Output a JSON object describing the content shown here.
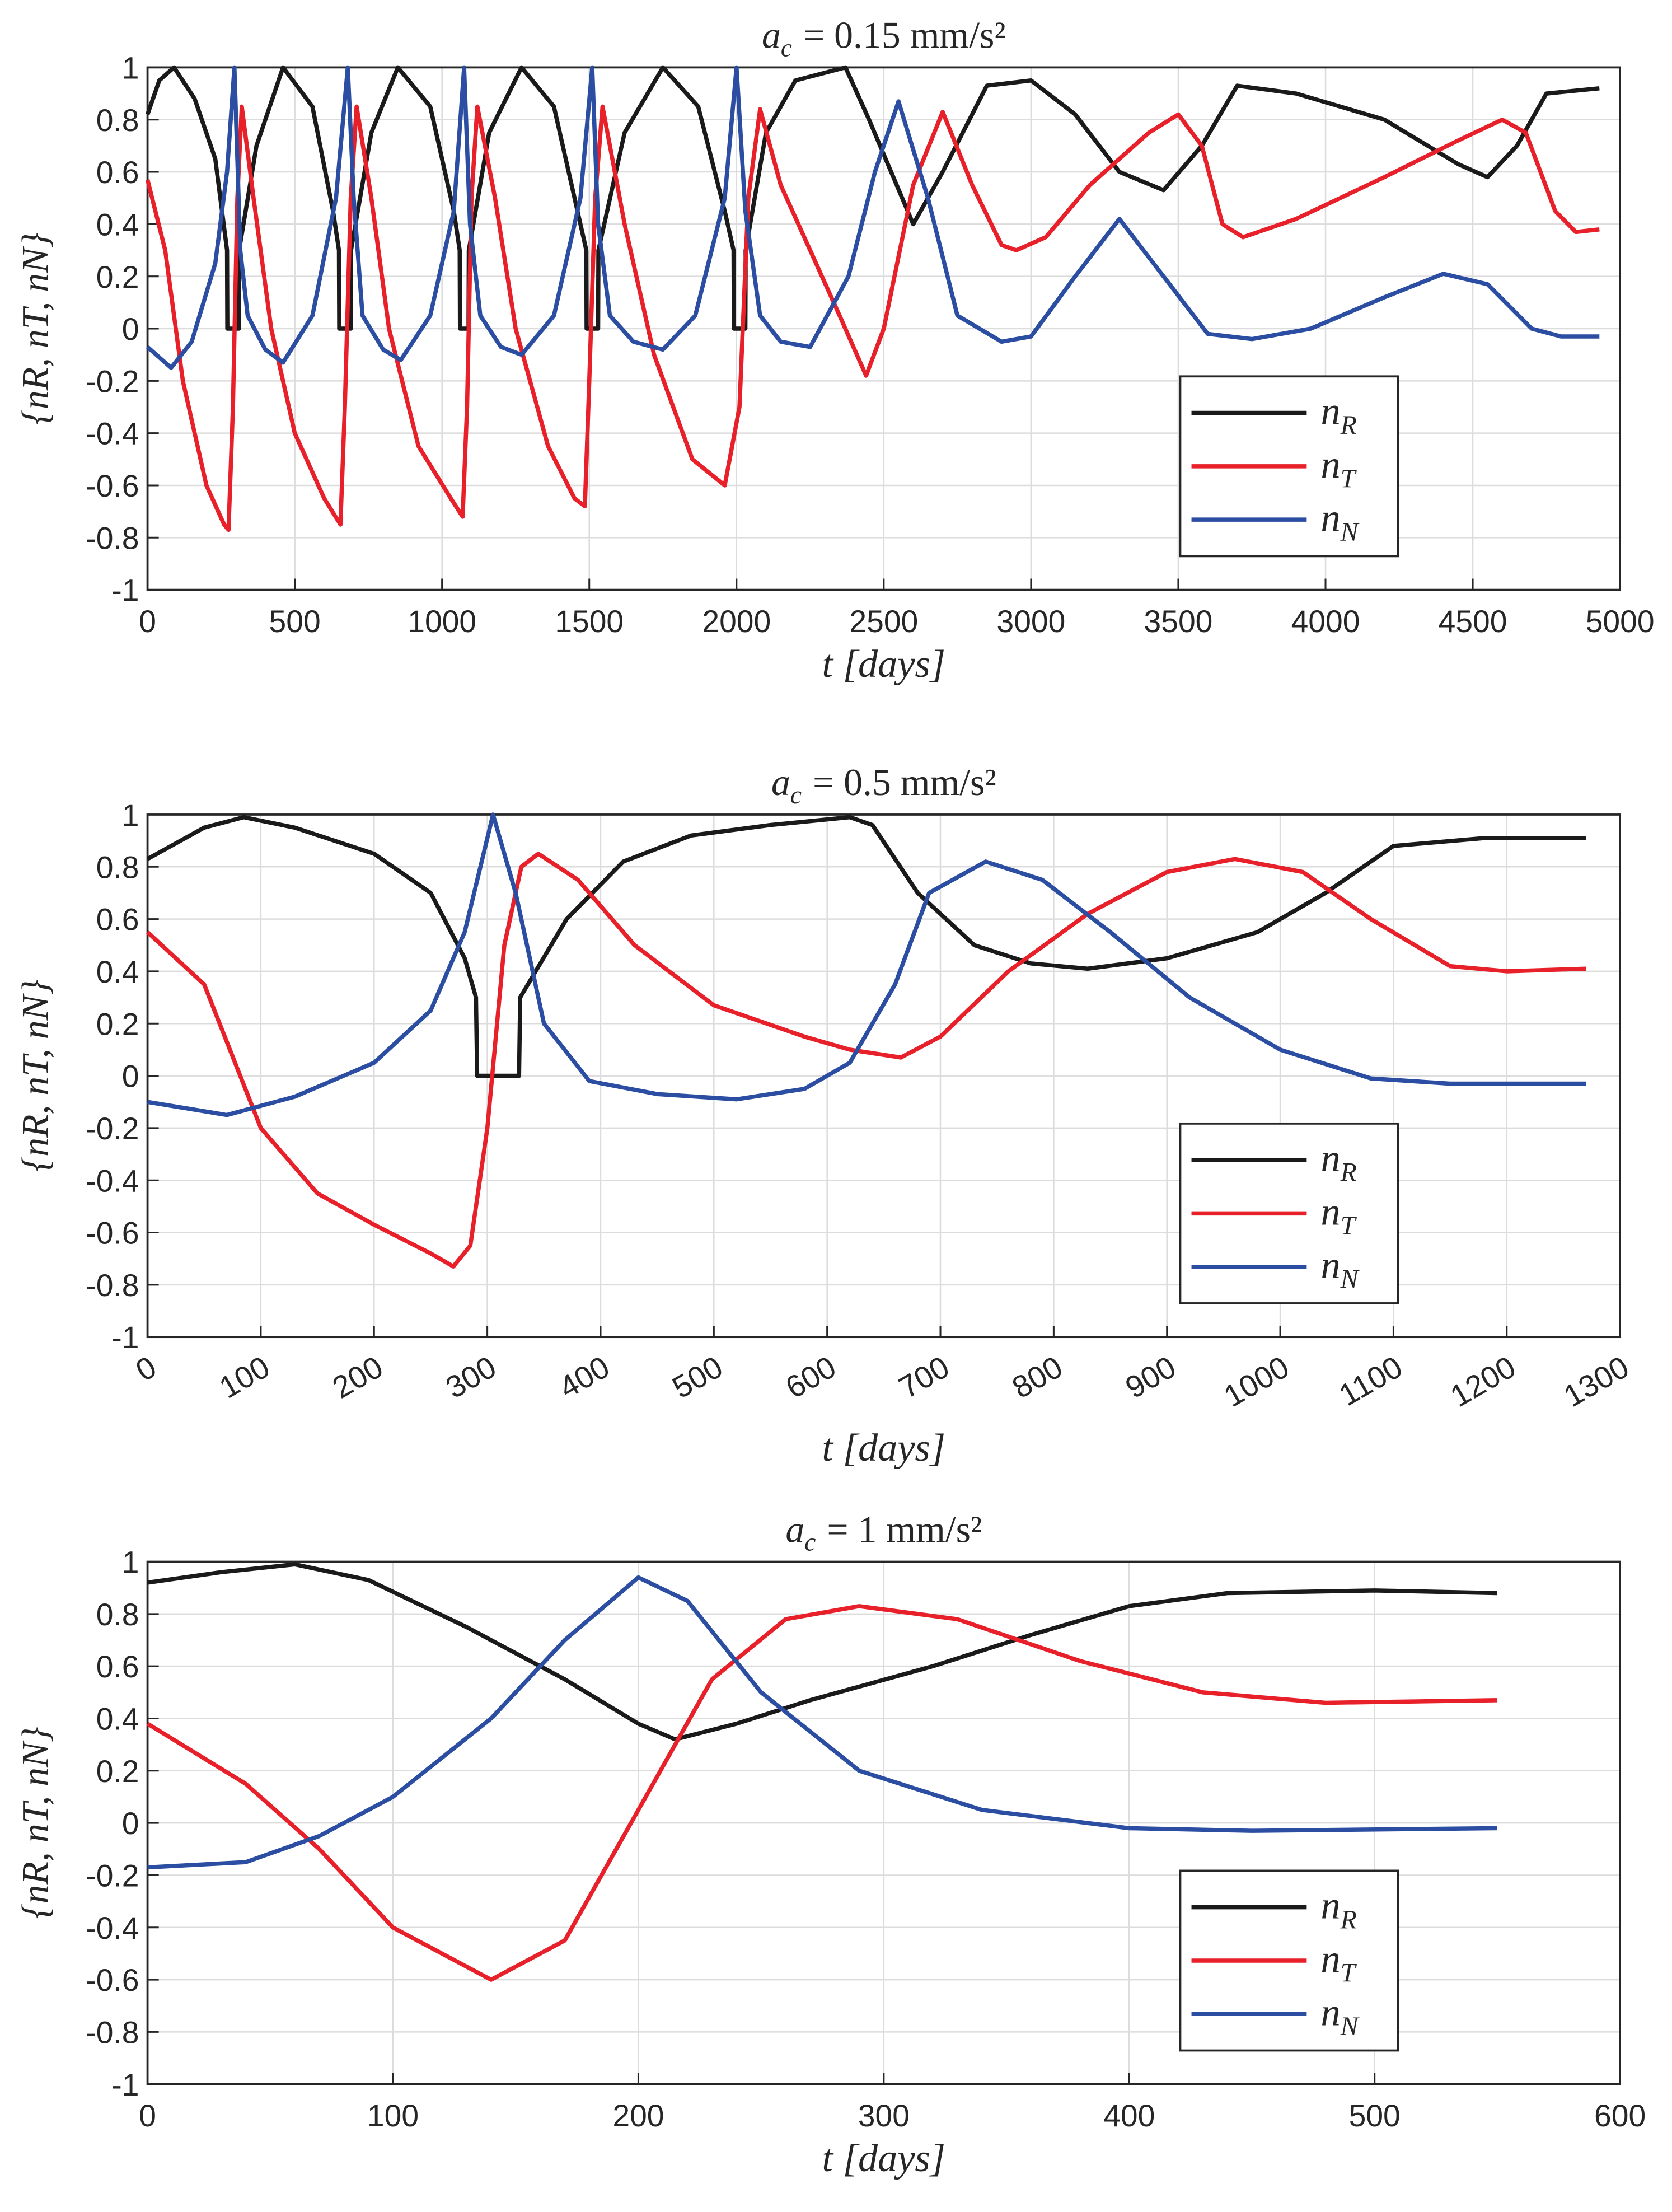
{
  "chart_data": [
    {
      "type": "line",
      "title": "a",
      "title_sub": "c",
      "title_rest": "= 0.15 mm/s²",
      "xlabel": "t [days]",
      "ylabel": "{nR, nT, nN}",
      "xlim": [
        0,
        5000
      ],
      "xticks": [
        0,
        500,
        1000,
        1500,
        2000,
        2500,
        3000,
        3500,
        4000,
        4500,
        5000
      ],
      "ylim": [
        -1,
        1
      ],
      "yticks": [
        -1,
        -0.8,
        -0.6,
        -0.4,
        -0.2,
        0,
        0.2,
        0.4,
        0.6,
        0.8,
        1
      ],
      "grid": true,
      "legend": "lower right",
      "xtick_rotation": 0,
      "series": [
        {
          "name": "n",
          "sub": "R",
          "color": "#1a1a1a",
          "x": [
            0,
            40,
            90,
            160,
            230,
            270,
            271,
            310,
            311,
            370,
            460,
            560,
            630,
            650,
            651,
            690,
            691,
            760,
            850,
            960,
            1040,
            1060,
            1061,
            1090,
            1091,
            1160,
            1270,
            1380,
            1460,
            1490,
            1491,
            1530,
            1531,
            1620,
            1750,
            1870,
            1960,
            1990,
            1991,
            2030,
            2031,
            2100,
            2200,
            2370,
            2450,
            2600,
            2700,
            2850,
            3000,
            3150,
            3300,
            3450,
            3580,
            3700,
            3900,
            4200,
            4450,
            4550,
            4650,
            4750,
            4930
          ],
          "values": [
            0.82,
            0.95,
            1,
            0.88,
            0.65,
            0.3,
            0,
            0,
            0.3,
            0.7,
            1,
            0.85,
            0.45,
            0.3,
            0,
            0,
            0.3,
            0.75,
            1,
            0.85,
            0.45,
            0.3,
            0,
            0,
            0.3,
            0.75,
            1,
            0.85,
            0.45,
            0.3,
            0,
            0,
            0.3,
            0.75,
            1,
            0.85,
            0.45,
            0.3,
            0,
            0,
            0.3,
            0.75,
            0.95,
            1,
            0.8,
            0.4,
            0.6,
            0.93,
            0.95,
            0.82,
            0.6,
            0.53,
            0.7,
            0.93,
            0.9,
            0.8,
            0.63,
            0.58,
            0.7,
            0.9,
            0.92
          ]
        },
        {
          "name": "n",
          "sub": "T",
          "color": "#e8202a",
          "x": [
            0,
            60,
            120,
            200,
            260,
            275,
            290,
            305,
            320,
            360,
            420,
            500,
            600,
            655,
            670,
            690,
            710,
            760,
            820,
            920,
            1030,
            1070,
            1085,
            1100,
            1120,
            1180,
            1250,
            1360,
            1450,
            1485,
            1500,
            1520,
            1545,
            1620,
            1720,
            1850,
            1960,
            2010,
            2040,
            2080,
            2150,
            2250,
            2350,
            2440,
            2500,
            2600,
            2700,
            2800,
            2900,
            2950,
            3050,
            3200,
            3400,
            3500,
            3580,
            3650,
            3720,
            3900,
            4200,
            4450,
            4600,
            4680,
            4780,
            4850,
            4930
          ],
          "values": [
            0.57,
            0.3,
            -0.2,
            -0.6,
            -0.75,
            -0.77,
            -0.3,
            0.5,
            0.85,
            0.5,
            0,
            -0.4,
            -0.65,
            -0.75,
            -0.3,
            0.5,
            0.85,
            0.5,
            0,
            -0.45,
            -0.65,
            -0.72,
            -0.3,
            0.5,
            0.85,
            0.5,
            0,
            -0.45,
            -0.65,
            -0.68,
            -0.2,
            0.5,
            0.85,
            0.4,
            -0.1,
            -0.5,
            -0.6,
            -0.3,
            0.5,
            0.84,
            0.55,
            0.3,
            0.05,
            -0.18,
            0,
            0.55,
            0.83,
            0.55,
            0.32,
            0.3,
            0.35,
            0.55,
            0.75,
            0.82,
            0.7,
            0.4,
            0.35,
            0.42,
            0.58,
            0.72,
            0.8,
            0.75,
            0.45,
            0.37,
            0.38
          ]
        },
        {
          "name": "n",
          "sub": "N",
          "color": "#2b4ea2",
          "x": [
            0,
            80,
            150,
            230,
            270,
            295,
            315,
            340,
            400,
            460,
            560,
            640,
            680,
            700,
            730,
            800,
            860,
            960,
            1040,
            1075,
            1095,
            1130,
            1200,
            1270,
            1380,
            1470,
            1510,
            1530,
            1570,
            1650,
            1750,
            1860,
            1960,
            2000,
            2030,
            2080,
            2150,
            2250,
            2380,
            2470,
            2550,
            2650,
            2750,
            2900,
            3000,
            3150,
            3300,
            3450,
            3600,
            3750,
            3950,
            4200,
            4400,
            4550,
            4700,
            4800,
            4930
          ],
          "values": [
            -0.07,
            -0.15,
            -0.05,
            0.25,
            0.6,
            1,
            0.3,
            0.05,
            -0.08,
            -0.13,
            0.05,
            0.5,
            1,
            0.5,
            0.05,
            -0.08,
            -0.12,
            0.05,
            0.45,
            1,
            0.4,
            0.05,
            -0.07,
            -0.1,
            0.05,
            0.5,
            1,
            0.4,
            0.05,
            -0.05,
            -0.08,
            0.05,
            0.5,
            1,
            0.45,
            0.05,
            -0.05,
            -0.07,
            0.2,
            0.6,
            0.87,
            0.5,
            0.05,
            -0.05,
            -0.03,
            0.2,
            0.42,
            0.2,
            -0.02,
            -0.04,
            0,
            0.12,
            0.21,
            0.17,
            0,
            -0.03,
            -0.03
          ]
        }
      ]
    },
    {
      "type": "line",
      "title": "a",
      "title_sub": "c",
      "title_rest": "= 0.5 mm/s²",
      "xlabel": "t [days]",
      "ylabel": "{nR, nT, nN}",
      "xlim": [
        0,
        1300
      ],
      "xticks": [
        0,
        100,
        200,
        300,
        400,
        500,
        600,
        700,
        800,
        900,
        1000,
        1100,
        1200,
        1300
      ],
      "ylim": [
        -1,
        1
      ],
      "yticks": [
        -1,
        -0.8,
        -0.6,
        -0.4,
        -0.2,
        0,
        0.2,
        0.4,
        0.6,
        0.8,
        1
      ],
      "grid": true,
      "legend": "lower right",
      "xtick_rotation": -30,
      "series": [
        {
          "name": "n",
          "sub": "R",
          "color": "#1a1a1a",
          "x": [
            0,
            50,
            85,
            130,
            200,
            250,
            280,
            290,
            291,
            328,
            329,
            370,
            420,
            480,
            550,
            620,
            640,
            680,
            730,
            780,
            830,
            900,
            980,
            1040,
            1100,
            1180,
            1270
          ],
          "values": [
            0.83,
            0.95,
            0.99,
            0.95,
            0.85,
            0.7,
            0.45,
            0.3,
            0,
            0,
            0.3,
            0.6,
            0.82,
            0.92,
            0.96,
            0.99,
            0.96,
            0.7,
            0.5,
            0.43,
            0.41,
            0.45,
            0.55,
            0.7,
            0.88,
            0.91,
            0.91
          ]
        },
        {
          "name": "n",
          "sub": "T",
          "color": "#e8202a",
          "x": [
            0,
            50,
            100,
            150,
            200,
            250,
            270,
            285,
            300,
            315,
            330,
            345,
            380,
            430,
            500,
            580,
            620,
            665,
            700,
            760,
            830,
            900,
            960,
            1020,
            1080,
            1150,
            1200,
            1270
          ],
          "values": [
            0.55,
            0.35,
            -0.2,
            -0.45,
            -0.57,
            -0.68,
            -0.73,
            -0.65,
            -0.2,
            0.5,
            0.8,
            0.85,
            0.75,
            0.5,
            0.27,
            0.15,
            0.1,
            0.07,
            0.15,
            0.4,
            0.62,
            0.78,
            0.83,
            0.78,
            0.6,
            0.42,
            0.4,
            0.41
          ]
        },
        {
          "name": "n",
          "sub": "N",
          "color": "#2b4ea2",
          "x": [
            0,
            70,
            130,
            200,
            250,
            280,
            305,
            325,
            350,
            390,
            450,
            520,
            580,
            620,
            660,
            690,
            740,
            790,
            850,
            920,
            1000,
            1080,
            1150,
            1270
          ],
          "values": [
            -0.1,
            -0.15,
            -0.08,
            0.05,
            0.25,
            0.55,
            1,
            0.7,
            0.2,
            -0.02,
            -0.07,
            -0.09,
            -0.05,
            0.05,
            0.35,
            0.7,
            0.82,
            0.75,
            0.55,
            0.3,
            0.1,
            -0.01,
            -0.03,
            -0.03
          ]
        }
      ]
    },
    {
      "type": "line",
      "title": "a",
      "title_sub": "c",
      "title_rest": "= 1 mm/s²",
      "xlabel": "t [days]",
      "ylabel": "{nR, nT, nN}",
      "xlim": [
        0,
        600
      ],
      "xticks": [
        0,
        100,
        200,
        300,
        400,
        500,
        600
      ],
      "ylim": [
        -1,
        1
      ],
      "yticks": [
        -1,
        -0.8,
        -0.6,
        -0.4,
        -0.2,
        0,
        0.2,
        0.4,
        0.6,
        0.8,
        1
      ],
      "grid": true,
      "legend": "lower right",
      "xtick_rotation": 0,
      "series": [
        {
          "name": "n",
          "sub": "R",
          "color": "#1a1a1a",
          "x": [
            0,
            30,
            60,
            90,
            130,
            170,
            200,
            215,
            240,
            270,
            320,
            360,
            400,
            440,
            500,
            550
          ],
          "values": [
            0.92,
            0.96,
            0.99,
            0.93,
            0.75,
            0.55,
            0.38,
            0.32,
            0.38,
            0.47,
            0.6,
            0.72,
            0.83,
            0.88,
            0.89,
            0.88
          ]
        },
        {
          "name": "n",
          "sub": "T",
          "color": "#e8202a",
          "x": [
            0,
            40,
            70,
            100,
            140,
            170,
            200,
            230,
            260,
            290,
            330,
            380,
            430,
            480,
            550
          ],
          "values": [
            0.38,
            0.15,
            -0.1,
            -0.4,
            -0.6,
            -0.45,
            0.05,
            0.55,
            0.78,
            0.83,
            0.78,
            0.62,
            0.5,
            0.46,
            0.47
          ]
        },
        {
          "name": "n",
          "sub": "N",
          "color": "#2b4ea2",
          "x": [
            0,
            40,
            70,
            100,
            140,
            170,
            200,
            220,
            250,
            290,
            340,
            400,
            450,
            550
          ],
          "values": [
            -0.17,
            -0.15,
            -0.05,
            0.1,
            0.4,
            0.7,
            0.94,
            0.85,
            0.5,
            0.2,
            0.05,
            -0.02,
            -0.03,
            -0.02
          ]
        }
      ]
    }
  ]
}
